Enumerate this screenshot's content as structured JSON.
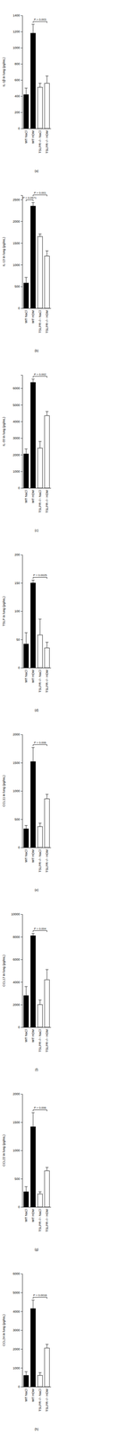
{
  "chart_data": [
    {
      "type": "bar",
      "title": "(a)",
      "y_label": "IL-1β in lung (pg/mL)",
      "categories": [
        "WT NaCl",
        "WT HDM",
        "TSLPR−/− NaCl",
        "TSLPR−/− HDM"
      ],
      "values": [
        420,
        1180,
        510,
        560
      ],
      "errors": [
        80,
        110,
        50,
        90
      ],
      "colors": [
        "#000000",
        "#000000",
        "#ffffff",
        "#ffffff"
      ],
      "ylim": [
        0,
        1400
      ],
      "yticks": [
        0,
        200,
        400,
        600,
        800,
        1000,
        1200,
        1400
      ],
      "annotations": [
        {
          "text": "P = 0.003",
          "from": 1,
          "to": 3
        }
      ]
    },
    {
      "type": "bar",
      "title": "(b)",
      "y_label": "IL-13 in lung (pg/mL)",
      "categories": [
        "WT NaCl",
        "WT HDM",
        "TSLPR−/− NaCl",
        "TSLPR−/− HDM"
      ],
      "values": [
        580,
        2350,
        1650,
        1200
      ],
      "errors": [
        130,
        80,
        60,
        120
      ],
      "colors": [
        "#000000",
        "#000000",
        "#ffffff",
        "#ffffff"
      ],
      "ylim": [
        0,
        2600
      ],
      "yticks": [
        0,
        500,
        1000,
        1500,
        2000,
        2500
      ],
      "annotations": [
        {
          "text": "P = 0.0571",
          "from": 0,
          "to": 1
        },
        {
          "text": "P = 0.001",
          "from": 1,
          "to": 3
        }
      ]
    },
    {
      "type": "bar",
      "title": "(c)",
      "y_label": "IL-33 in lung (pg/mL)",
      "categories": [
        "WT NaCl",
        "WT HDM",
        "TSLPR−/− NaCl",
        "TSLPR−/− HDM"
      ],
      "values": [
        2050,
        6350,
        2400,
        4350
      ],
      "errors": [
        300,
        200,
        400,
        250
      ],
      "colors": [
        "#000000",
        "#000000",
        "#ffffff",
        "#ffffff"
      ],
      "ylim": [
        0,
        6800
      ],
      "yticks": [
        0,
        1000,
        2000,
        3000,
        4000,
        5000,
        6000
      ],
      "annotations": [
        {
          "text": "P = 0.002",
          "from": 1,
          "to": 3
        }
      ]
    },
    {
      "type": "bar",
      "title": "(d)",
      "y_label": "TSLP in lung (pg/mL)",
      "categories": [
        "WT NaCl",
        "WT HDM",
        "TSLPR−/− NaCl",
        "TSLPR−/− HDM"
      ],
      "values": [
        42,
        150,
        58,
        35
      ],
      "errors": [
        20,
        5,
        28,
        10
      ],
      "colors": [
        "#000000",
        "#000000",
        "#ffffff",
        "#ffffff"
      ],
      "ylim": [
        0,
        200
      ],
      "yticks": [
        0,
        50,
        100,
        150,
        200
      ],
      "annotations": [
        {
          "text": "P = 0.0025",
          "from": 1,
          "to": 3
        }
      ]
    },
    {
      "type": "bar",
      "title": "(e)",
      "y_label": "CCL11 in lung (pg/mL)",
      "categories": [
        "WT NaCl",
        "WT HDM",
        "TSLPR−/− NaCl",
        "TSLPR−/− HDM"
      ],
      "values": [
        330,
        1520,
        370,
        860
      ],
      "errors": [
        60,
        250,
        60,
        80
      ],
      "colors": [
        "#000000",
        "#000000",
        "#ffffff",
        "#ffffff"
      ],
      "ylim": [
        0,
        2000
      ],
      "yticks": [
        0,
        500,
        1000,
        1500,
        2000
      ],
      "annotations": [
        {
          "text": "P = 0.006",
          "from": 1,
          "to": 3
        }
      ]
    },
    {
      "type": "bar",
      "title": "(f)",
      "y_label": "CCL17 in lung (pg/mL)",
      "categories": [
        "WT NaCl",
        "WT HDM",
        "TSLPR−/− NaCl",
        "TSLPR−/− HDM"
      ],
      "values": [
        2800,
        8100,
        2000,
        4200
      ],
      "errors": [
        800,
        200,
        400,
        900
      ],
      "colors": [
        "#000000",
        "#000000",
        "#ffffff",
        "#ffffff"
      ],
      "ylim": [
        0,
        10000
      ],
      "yticks": [
        0,
        2000,
        4000,
        6000,
        8000,
        10000
      ],
      "annotations": [
        {
          "text": "P = 0.004",
          "from": 1,
          "to": 3
        }
      ]
    },
    {
      "type": "bar",
      "title": "(g)",
      "y_label": "CCL22 in lung (pg/mL)",
      "categories": [
        "WT NaCl",
        "WT HDM",
        "TSLPR−/− NaCl",
        "TSLPR−/− HDM"
      ],
      "values": [
        270,
        1420,
        230,
        640
      ],
      "errors": [
        90,
        250,
        40,
        60
      ],
      "colors": [
        "#000000",
        "#000000",
        "#ffffff",
        "#ffffff"
      ],
      "ylim": [
        0,
        2000
      ],
      "yticks": [
        0,
        500,
        1000,
        1500,
        2000
      ],
      "annotations": [
        {
          "text": "P = 0.006",
          "from": 1,
          "to": 3
        }
      ]
    },
    {
      "type": "bar",
      "title": "(h)",
      "y_label": "CCL24 in lung (pg/mL)",
      "categories": [
        "WT NaCl",
        "WT HDM",
        "TSLPR−/− NaCl",
        "TSLPR−/− HDM"
      ],
      "values": [
        600,
        4150,
        600,
        2050
      ],
      "errors": [
        200,
        450,
        150,
        200
      ],
      "colors": [
        "#000000",
        "#000000",
        "#ffffff",
        "#ffffff"
      ],
      "ylim": [
        0,
        6000
      ],
      "yticks": [
        0,
        1000,
        2000,
        3000,
        4000,
        5000,
        6000
      ],
      "annotations": [
        {
          "text": "P = 0.0016",
          "from": 1,
          "to": 3
        }
      ]
    }
  ]
}
